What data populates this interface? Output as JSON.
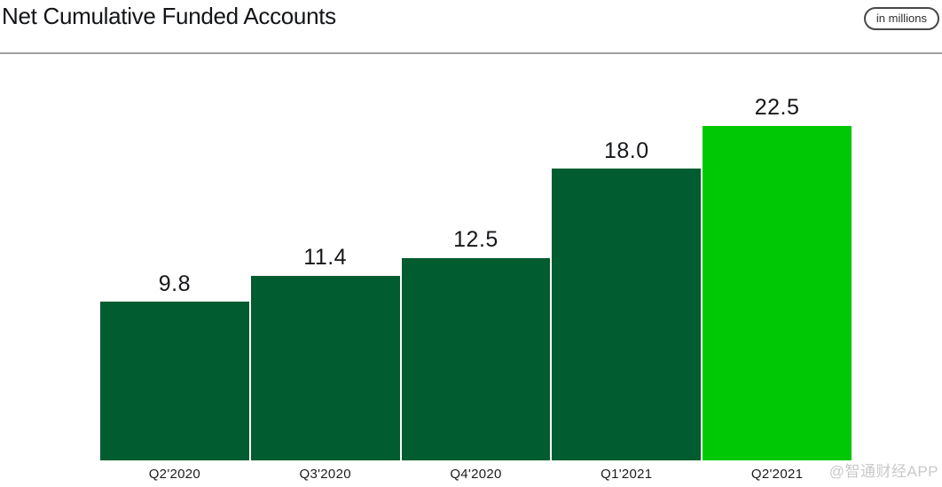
{
  "header": {
    "title": "Net Cumulative Funded Accounts",
    "unit_badge": "in millions"
  },
  "colors": {
    "bar_default": "#015C2F",
    "bar_highlight": "#00C805",
    "title_text": "#121417",
    "divider": "#9E9E9E",
    "watermark_text": "#C9C9C9"
  },
  "chart_data": {
    "type": "bar",
    "title": "Net Cumulative Funded Accounts",
    "unit": "in millions",
    "categories": [
      "Q2'2020",
      "Q3'2020",
      "Q4'2020",
      "Q1'2021",
      "Q2'2021"
    ],
    "values": [
      9.8,
      11.4,
      12.5,
      18.0,
      22.5
    ],
    "value_labels": [
      "9.8",
      "11.4",
      "12.5",
      "18.0",
      "22.5"
    ],
    "highlight_index": 4,
    "ylim": [
      0,
      22.5
    ],
    "grid": false,
    "legend": false,
    "xlabel": "",
    "ylabel": ""
  },
  "watermark": "@智通财经APP"
}
